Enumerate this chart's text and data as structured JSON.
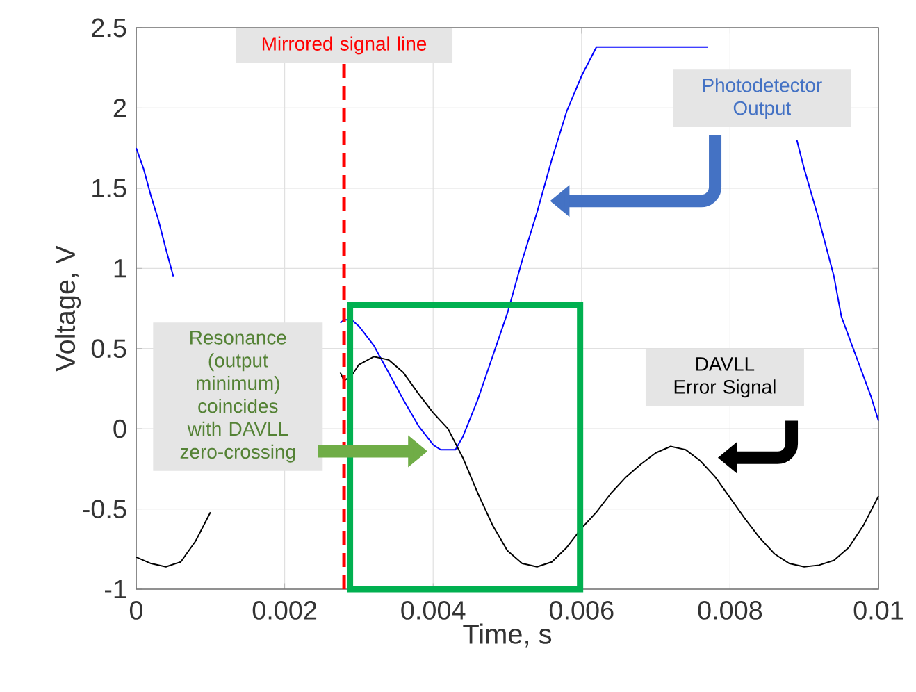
{
  "chart_data": {
    "type": "line",
    "xlabel": "Time, s",
    "ylabel": "Voltage, V",
    "xlim": [
      0,
      0.01
    ],
    "ylim": [
      -1,
      2.5
    ],
    "xticks": [
      0,
      0.002,
      0.004,
      0.006,
      0.008,
      0.01
    ],
    "yticks": [
      -1,
      -0.5,
      0,
      0.5,
      1,
      1.5,
      2,
      2.5
    ],
    "grid": true,
    "marker": "none",
    "line_style": "solid",
    "series": [
      {
        "color": "#0000ff",
        "x": [
          0,
          0.0001,
          0.0002,
          0.0003,
          0.0004,
          0.0005,
          0.0006,
          0.00275,
          0.0028,
          0.0029,
          0.003,
          0.0032,
          0.0034,
          0.0036,
          0.0038,
          0.004,
          0.0041,
          0.0043,
          0.0044,
          0.0046,
          0.0048,
          0.005,
          0.0052,
          0.0054,
          0.0056,
          0.0058,
          0.006,
          0.0062,
          0.0077,
          0.0083,
          0.0089,
          0.009,
          0.0092,
          0.0094,
          0.0095,
          0.0097,
          0.0099,
          0.01
        ],
        "values": [
          1.75,
          1.62,
          1.45,
          1.3,
          1.12,
          0.95,
          null,
          0.66,
          0.68,
          0.68,
          0.64,
          0.52,
          0.35,
          0.18,
          0.02,
          -0.1,
          -0.13,
          -0.13,
          -0.05,
          0.18,
          0.45,
          0.72,
          1.05,
          1.35,
          1.68,
          1.98,
          2.2,
          2.38,
          2.38,
          null,
          1.8,
          1.62,
          1.3,
          0.95,
          0.7,
          0.45,
          0.2,
          0.05
        ]
      },
      {
        "color": "#000000",
        "x": [
          0,
          0.0002,
          0.0004,
          0.0006,
          0.0008,
          0.001,
          0.0015,
          0.00275,
          0.0028,
          0.0029,
          0.003,
          0.0032,
          0.0034,
          0.0036,
          0.0038,
          0.004,
          0.0042,
          0.0044,
          0.0046,
          0.0048,
          0.005,
          0.0052,
          0.0054,
          0.0056,
          0.0058,
          0.006,
          0.0062,
          0.0064,
          0.0066,
          0.0068,
          0.007,
          0.0072,
          0.0074,
          0.0076,
          0.0078,
          0.008,
          0.0082,
          0.0084,
          0.0086,
          0.0088,
          0.009,
          0.0092,
          0.0094,
          0.0096,
          0.0098,
          0.01
        ],
        "values": [
          -0.8,
          -0.84,
          -0.86,
          -0.83,
          -0.7,
          -0.52,
          null,
          0.35,
          0.3,
          0.33,
          0.4,
          0.45,
          0.43,
          0.35,
          0.22,
          0.1,
          0.0,
          -0.18,
          -0.4,
          -0.6,
          -0.76,
          -0.84,
          -0.86,
          -0.83,
          -0.74,
          -0.62,
          -0.52,
          -0.4,
          -0.3,
          -0.22,
          -0.15,
          -0.11,
          -0.13,
          -0.2,
          -0.3,
          -0.43,
          -0.56,
          -0.68,
          -0.78,
          -0.84,
          -0.86,
          -0.85,
          -0.82,
          -0.74,
          -0.6,
          -0.42
        ]
      }
    ],
    "ref_lines": [
      {
        "axis": "x",
        "value": 0.0028,
        "label": "Mirrored signal line",
        "color": "#ff0000",
        "line_style": "dashed"
      }
    ],
    "annotations": [
      "Photodetector Output",
      "DAVLL Error Signal",
      "Resonance (output minimum) coincides with DAVLL zero-crossing"
    ]
  }
}
